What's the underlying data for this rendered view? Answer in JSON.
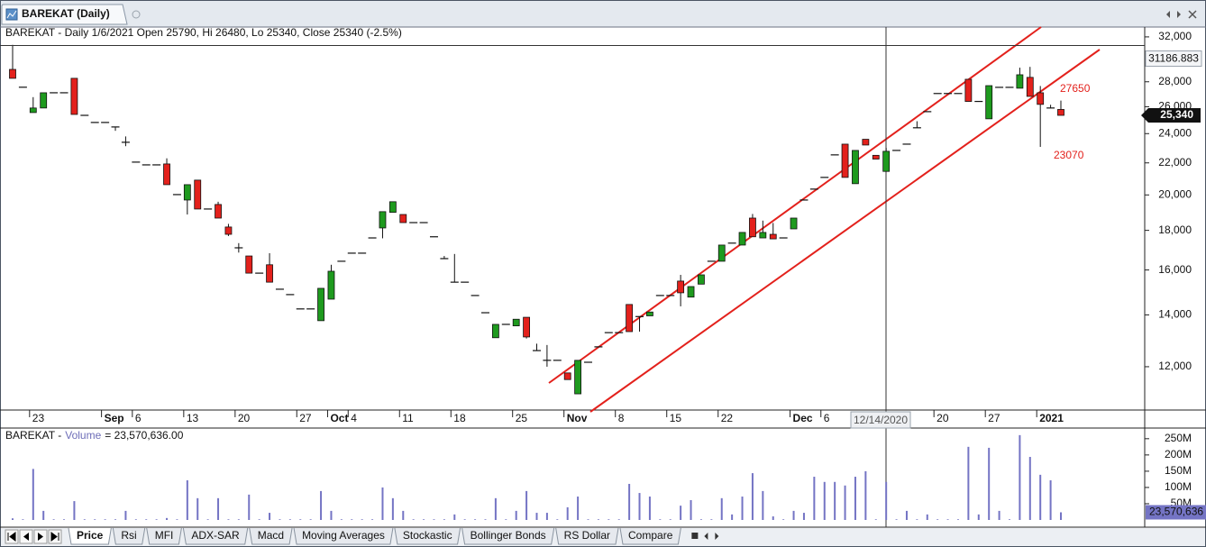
{
  "window": {
    "title": "BAREKAT (Daily)"
  },
  "chart_data": [
    {
      "type": "candlestick",
      "title": "BAREKAT - Daily 1/6/2021 Open 25790, Hi 26480, Lo 25340, Close 25340 (-2.5%)",
      "categories": [
        null,
        null,
        "23",
        null,
        null,
        null,
        null,
        null,
        null,
        "Sep",
        null,
        null,
        "6",
        null,
        null,
        null,
        null,
        "13",
        null,
        null,
        null,
        null,
        "20",
        null,
        null,
        null,
        null,
        null,
        "27",
        null,
        null,
        "Oct",
        null,
        "4",
        null,
        null,
        null,
        null,
        "11",
        null,
        null,
        null,
        null,
        "18",
        null,
        null,
        null,
        null,
        null,
        "25",
        null,
        null,
        null,
        null,
        "Nov",
        null,
        null,
        null,
        null,
        "8",
        null,
        null,
        null,
        null,
        "15",
        null,
        null,
        null,
        null,
        "22",
        null,
        null,
        null,
        null,
        null,
        null,
        "Dec",
        null,
        null,
        "6",
        null,
        null,
        null,
        null,
        null,
        null,
        null,
        null,
        null,
        null,
        "20",
        null,
        null,
        null,
        null,
        "27",
        null,
        null,
        null,
        null,
        "2021",
        null,
        null
      ],
      "open": [
        29050,
        27550,
        25550,
        25900,
        27100,
        27100,
        28290,
        25340,
        24810,
        24810,
        24480,
        23390,
        22050,
        21870,
        21870,
        21930,
        20020,
        19700,
        20900,
        19180,
        19440,
        18180,
        17090,
        16680,
        15850,
        16250,
        15110,
        14870,
        14250,
        14250,
        13760,
        14670,
        16420,
        16820,
        16820,
        17600,
        18130,
        18990,
        18870,
        18420,
        18420,
        17660,
        16550,
        15430,
        15430,
        14830,
        14090,
        13080,
        13610,
        13550,
        13900,
        12590,
        12230,
        12230,
        11780,
        11070,
        12160,
        12730,
        13280,
        13280,
        14440,
        13930,
        13960,
        14830,
        14830,
        15480,
        14760,
        15340,
        16420,
        16420,
        17330,
        17230,
        18670,
        17600,
        17790,
        17600,
        18080,
        19700,
        20350,
        21070,
        22530,
        23260,
        20680,
        23600,
        22500,
        21450,
        22830,
        23260,
        24420,
        25620,
        27040,
        27040,
        27040,
        28210,
        26410,
        25080,
        27540,
        27540,
        27470,
        28370,
        27100,
        25900,
        25790
      ],
      "high": [
        31250,
        27550,
        26750,
        27100,
        27100,
        27100,
        28290,
        25340,
        24810,
        24810,
        24480,
        23800,
        22050,
        21870,
        21870,
        22300,
        20020,
        20620,
        20900,
        19180,
        19600,
        18350,
        17330,
        16680,
        15850,
        16820,
        15110,
        14870,
        14250,
        14250,
        15150,
        16250,
        16420,
        16820,
        16820,
        17600,
        19030,
        19600,
        18870,
        18420,
        18420,
        17660,
        16680,
        16780,
        15430,
        14830,
        14090,
        13610,
        13610,
        13820,
        13900,
        12850,
        12800,
        12230,
        11780,
        12230,
        12160,
        12730,
        13280,
        13280,
        14440,
        13930,
        14120,
        14830,
        14830,
        15770,
        15230,
        15770,
        16420,
        17230,
        17330,
        17890,
        18900,
        18530,
        18400,
        17600,
        18670,
        19700,
        20350,
        21070,
        22530,
        23260,
        22830,
        23600,
        22500,
        23000,
        22830,
        23260,
        24900,
        25620,
        27040,
        27040,
        27040,
        28210,
        26410,
        27680,
        27540,
        27540,
        29200,
        29270,
        27650,
        26150,
        26480
      ],
      "low": [
        28290,
        27550,
        25550,
        25900,
        27100,
        27100,
        25410,
        25340,
        24810,
        24810,
        24200,
        23120,
        22050,
        21870,
        21870,
        20620,
        20020,
        18870,
        19180,
        19180,
        18670,
        17700,
        16850,
        15850,
        15850,
        15430,
        15110,
        14870,
        14250,
        14250,
        13760,
        14670,
        16420,
        16820,
        16820,
        17600,
        17580,
        18990,
        18420,
        18420,
        18420,
        17660,
        16550,
        15430,
        15430,
        14830,
        14090,
        13080,
        13610,
        13550,
        13050,
        12590,
        12000,
        12230,
        11550,
        11070,
        12160,
        12730,
        13280,
        13280,
        13320,
        13320,
        13960,
        14830,
        14830,
        14360,
        14760,
        15340,
        16420,
        16420,
        17330,
        17230,
        17660,
        17600,
        17550,
        17600,
        18080,
        19700,
        20350,
        21070,
        22530,
        21070,
        20680,
        23200,
        22250,
        21450,
        22830,
        23260,
        24420,
        25620,
        27040,
        27040,
        27040,
        26410,
        26410,
        25080,
        27540,
        27540,
        27470,
        26810,
        23070,
        25900,
        25340
      ],
      "close": [
        28290,
        27550,
        25900,
        27100,
        27100,
        27100,
        25410,
        25340,
        24810,
        24810,
        24480,
        23390,
        22050,
        21870,
        21870,
        20620,
        20020,
        20620,
        19180,
        19180,
        18670,
        17790,
        17090,
        15850,
        15850,
        15430,
        15110,
        14870,
        14250,
        14250,
        15150,
        15940,
        16420,
        16820,
        16820,
        17600,
        19030,
        19600,
        18420,
        18420,
        18420,
        17660,
        16550,
        15430,
        15430,
        14830,
        14090,
        13610,
        13610,
        13820,
        13110,
        12590,
        12230,
        12230,
        11550,
        12230,
        12160,
        12730,
        13280,
        13280,
        13320,
        13930,
        14120,
        14830,
        14830,
        14950,
        15230,
        15770,
        16420,
        17230,
        17330,
        17890,
        17660,
        17890,
        17550,
        17600,
        18670,
        19700,
        20350,
        21070,
        22530,
        21070,
        22830,
        23200,
        22250,
        22770,
        22830,
        23260,
        24420,
        25620,
        27040,
        27040,
        27040,
        26410,
        26410,
        27680,
        27540,
        27540,
        28590,
        26810,
        26180,
        25900,
        25340
      ],
      "up_color": "#1e9a1e",
      "down_color": "#e3211c",
      "log_scale": true,
      "ylim": [
        10550,
        32950
      ],
      "yticks": [
        {
          "value": 12000,
          "label": "12,000"
        },
        {
          "value": 14000,
          "label": "14,000"
        },
        {
          "value": 16000,
          "label": "16,000"
        },
        {
          "value": 18000,
          "label": "18,000"
        },
        {
          "value": 20000,
          "label": "20,000"
        },
        {
          "value": 22000,
          "label": "22,000"
        },
        {
          "value": 24000,
          "label": "24,000"
        },
        {
          "value": 26000,
          "label": "26,000"
        },
        {
          "value": 28000,
          "label": "28,000"
        },
        {
          "value": 32000,
          "label": "32,000"
        }
      ],
      "last_price": {
        "value": 25340,
        "label": "25,340"
      },
      "crosshair": {
        "date": "12/14/2020",
        "value": 31186.883
      },
      "annotations": [
        "27650",
        "23070"
      ]
    },
    {
      "type": "bar",
      "title": "BAREKAT -",
      "series": [
        {
          "name": "Volume",
          "color": "#7474c4",
          "values": [
            5000000,
            2000000,
            157000000,
            28000000,
            2000000,
            2000000,
            58000000,
            2000000,
            2000000,
            2000000,
            2000000,
            28000000,
            2000000,
            2000000,
            2000000,
            6000000,
            2000000,
            122000000,
            67000000,
            2000000,
            67000000,
            2000000,
            2000000,
            78000000,
            2000000,
            22000000,
            2000000,
            2000000,
            2000000,
            2000000,
            89000000,
            28000000,
            2000000,
            2000000,
            2000000,
            2000000,
            100000000,
            67000000,
            28000000,
            2000000,
            2000000,
            2000000,
            2000000,
            17000000,
            2000000,
            2000000,
            2000000,
            67000000,
            2000000,
            28000000,
            89000000,
            22000000,
            22000000,
            2000000,
            39000000,
            72000000,
            2000000,
            2000000,
            2000000,
            2000000,
            111000000,
            83000000,
            72000000,
            2000000,
            2000000,
            44000000,
            61000000,
            2000000,
            2000000,
            67000000,
            17000000,
            72000000,
            144000000,
            89000000,
            11000000,
            2000000,
            28000000,
            22000000,
            133000000,
            117000000,
            117000000,
            106000000,
            133000000,
            150000000,
            2000000,
            117000000,
            2000000,
            28000000,
            2000000,
            17000000,
            2000000,
            2000000,
            2000000,
            225000000,
            17000000,
            222000000,
            28000000,
            2000000,
            261000000,
            194000000,
            139000000,
            122000000,
            23570636
          ]
        }
      ],
      "readout": {
        "value": 23570636,
        "label": "= 23,570,636.00"
      },
      "last_value": {
        "value": 23570636,
        "label": "23,570,636"
      },
      "ylim": [
        0,
        280000000
      ],
      "yticks": [
        {
          "value": 50000000,
          "label": "50M"
        },
        {
          "value": 100000000,
          "label": "100M"
        },
        {
          "value": 150000000,
          "label": "150M"
        },
        {
          "value": 200000000,
          "label": "200M"
        },
        {
          "value": 250000000,
          "label": "250M"
        }
      ]
    }
  ],
  "tabs": [
    "Price",
    "Rsi",
    "MFI",
    "ADX-SAR",
    "Macd",
    "Moving Averages",
    "Stockastic",
    "Bollinger Bonds",
    "RS Dollar",
    "Compare"
  ]
}
